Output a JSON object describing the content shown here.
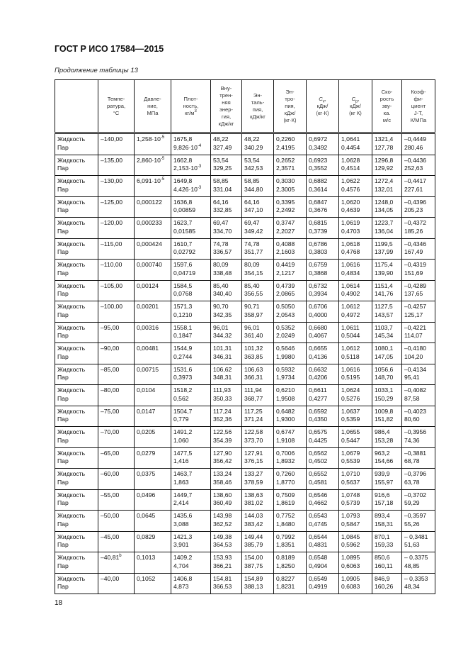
{
  "header": {
    "title": "ГОСТ Р ИСО 17584—2015",
    "subtitle": "Продолжение таблицы 13"
  },
  "columns": {
    "phase": "",
    "temperature": "Темпе-\nратура,\n°С",
    "pressure": "Давле-\nние,\nМПа",
    "density": "Плот-\nность,\nкг/м",
    "density_sup": "3",
    "internal_energy": "Вну-\nтрен-\nняя\nэнер-\nгия,\nкДж/кг",
    "enthalpy": "Эн-\nталь-\nпия,\nкДж/кг",
    "entropy": "Эн-\nтро-\nпия,\nкДж/\n(кг·К)",
    "cv_sym": "C",
    "cv_sub": "v",
    "cv_unit": ",\nкДж/\n(кг·К)",
    "cp_sym": "C",
    "cp_sub": "p",
    "cp_unit": ",\nкДж/\n(кг К)",
    "sound_speed": "Ско-\nрость\nзву-\nка.\nм/с",
    "jt": "Коэф-\nфи-\nциент\nJ-T,\nК/МПа"
  },
  "phase_labels": {
    "liquid": "Жидкость",
    "vapor": "Пар"
  },
  "rows": [
    {
      "t": "–140,00",
      "t_sup": "",
      "p": "1,258·10",
      "p_exp": "-5",
      "rho_l": "1675,8",
      "rho_v": "9,826·10",
      "rho_v_exp": "-4",
      "u_l": "48,22",
      "u_v": "327,49",
      "h_l": "48,22",
      "h_v": "340,29",
      "s_l": "0,2260",
      "s_v": "2,4195",
      "cv_l": "0,6972",
      "cv_v": "0,3492",
      "cp_l": "1,0641",
      "cp_v": "0,4454",
      "w_l": "1321,4",
      "w_v": "127,78",
      "jt_l": "–0,4449",
      "jt_v": "280,46"
    },
    {
      "t": "–135,00",
      "t_sup": "",
      "p": "2,860·10",
      "p_exp": "-5",
      "rho_l": "1662,8",
      "rho_v": "2,153·10",
      "rho_v_exp": "-3",
      "u_l": "53,54",
      "u_v": "329,25",
      "h_l": "53,54",
      "h_v": "342,53",
      "s_l": "0,2652",
      "s_v": "2,3571",
      "cv_l": "0,6923",
      "cv_v": "0,3552",
      "cp_l": "1,0628",
      "cp_v": "0,4514",
      "w_l": "1296,8",
      "w_v": "129,92",
      "jt_l": "–0,4436",
      "jt_v": "252,63"
    },
    {
      "t": "–130,00",
      "t_sup": "",
      "p": "6,091·10",
      "p_exp": "-5",
      "rho_l": "1649,8",
      "rho_v": "4,426·10",
      "rho_v_exp": "-3",
      "u_l": "58,85",
      "u_v": "331,04",
      "h_l": "58,85",
      "h_v": "344,80",
      "s_l": "0,3030",
      "s_v": "2,3005",
      "cv_l": "0,6882",
      "cv_v": "0,3614",
      "cp_l": "1,0622",
      "cp_v": "0,4576",
      "w_l": "1272,4",
      "w_v": "132,01",
      "jt_l": "–0,4417",
      "jt_v": "227,61"
    },
    {
      "t": "–125,00",
      "t_sup": "",
      "p": "0,000122",
      "p_exp": "",
      "rho_l": "1636,8",
      "rho_v": "0,00859",
      "rho_v_exp": "",
      "u_l": "64,16",
      "u_v": "332,85",
      "h_l": "64,16",
      "h_v": "347,10",
      "s_l": "0,3395",
      "s_v": "2,2492",
      "cv_l": "0,6847",
      "cv_v": "0,3676",
      "cp_l": "1,0620",
      "cp_v": "0,4639",
      "w_l": "1248,0",
      "w_v": "134,05",
      "jt_l": "–0,4396",
      "jt_v": "205,23"
    },
    {
      "t": "–120,00",
      "t_sup": "",
      "p": "0,000233",
      "p_exp": "",
      "rho_l": "1623,7",
      "rho_v": "0,01585",
      "rho_v_exp": "",
      "u_l": "69,47",
      "u_v": "334,70",
      "h_l": "69,47",
      "h_v": "349,42",
      "s_l": "0,3747",
      "s_v": "2,2027",
      "cv_l": "0,6815",
      "cv_v": "0,3739",
      "cp_l": "1,0619",
      "cp_v": "0,4703",
      "w_l": "1223,7",
      "w_v": "136,04",
      "jt_l": "–0,4372",
      "jt_v": "185,26"
    },
    {
      "t": "–115,00",
      "t_sup": "",
      "p": "0,000424",
      "p_exp": "",
      "rho_l": "1610,7",
      "rho_v": "0,02792",
      "rho_v_exp": "",
      "u_l": "74,78",
      "u_v": "336,57",
      "h_l": "74,78",
      "h_v": "351,77",
      "s_l": "0,4088",
      "s_v": "2,1603",
      "cv_l": "0,6786",
      "cv_v": "0,3803",
      "cp_l": "1,0618",
      "cp_v": "0,4768",
      "w_l": "1199,5",
      "w_v": "137,99",
      "jt_l": "–0,4346",
      "jt_v": "167,49"
    },
    {
      "t": "–110,00",
      "t_sup": "",
      "p": "0,000740",
      "p_exp": "",
      "rho_l": "1597,6",
      "rho_v": "0,04719",
      "rho_v_exp": "",
      "u_l": "80,09",
      "u_v": "338,48",
      "h_l": "80,09",
      "h_v": "354,15",
      "s_l": "0,4419",
      "s_v": "2,1217",
      "cv_l": "0,6759",
      "cv_v": "0,3868",
      "cp_l": "1,0616",
      "cp_v": "0,4834",
      "w_l": "1175,4",
      "w_v": "139,90",
      "jt_l": "–0,4319",
      "jt_v": "151,69"
    },
    {
      "t": "–105,00",
      "t_sup": "",
      "p": "0,00124",
      "p_exp": "",
      "rho_l": "1584,5",
      "rho_v": "0,0768",
      "rho_v_exp": "",
      "u_l": "85,40",
      "u_v": "340,40",
      "h_l": "85,40",
      "h_v": "356,55",
      "s_l": "0,4739",
      "s_v": "2,0865",
      "cv_l": "0,6732",
      "cv_v": "0,3934",
      "cp_l": "1,0614",
      "cp_v": "0,4902",
      "w_l": "1151,4",
      "w_v": "141,76",
      "jt_l": "–0,4289",
      "jt_v": "137,65"
    },
    {
      "t": "–100,00",
      "t_sup": "",
      "p": "0,00201",
      "p_exp": "",
      "rho_l": "1571,3",
      "rho_v": "0,1210",
      "rho_v_exp": "",
      "u_l": "90,70",
      "u_v": "342,35",
      "h_l": "90,71",
      "h_v": "358,97",
      "s_l": "0,5050",
      "s_v": "2,0543",
      "cv_l": "0,6706",
      "cv_v": "0,4000",
      "cp_l": "1,0612",
      "cp_v": "0,4972",
      "w_l": "1127,5",
      "w_v": "143,57",
      "jt_l": "–0,4257",
      "jt_v": "125,17"
    },
    {
      "t": "–95,00",
      "t_sup": "",
      "p": "0,00316",
      "p_exp": "",
      "rho_l": "1558,1",
      "rho_v": "0,1847",
      "rho_v_exp": "",
      "u_l": "96,01",
      "u_v": "344,32",
      "h_l": "96,01",
      "h_v": "361,40",
      "s_l": "0,5352",
      "s_v": "2,0249",
      "cv_l": "0,6680",
      "cv_v": "0,4067",
      "cp_l": "1,0611",
      "cp_v": "0,5044",
      "w_l": "1103,7",
      "w_v": "145,34",
      "jt_l": "–0,4221",
      "jt_v": "114,07"
    },
    {
      "t": "–90,00",
      "t_sup": "",
      "p": "0,00481",
      "p_exp": "",
      "rho_l": "1544,9",
      "rho_v": "0,2744",
      "rho_v_exp": "",
      "u_l": "101,31",
      "u_v": "346,31",
      "h_l": "101,32",
      "h_v": "363,85",
      "s_l": "0,5646",
      "s_v": "1,9980",
      "cv_l": "0,6655",
      "cv_v": "0,4136",
      "cp_l": "1,0612",
      "cp_v": "0,5118",
      "w_l": "1080,1",
      "w_v": "147,05",
      "jt_l": "–0,4180",
      "jt_v": "104,20"
    },
    {
      "t": "–85,00",
      "t_sup": "",
      "p": "0,00715",
      "p_exp": "",
      "rho_l": "1531,6",
      "rho_v": "0,3973",
      "rho_v_exp": "",
      "u_l": "106,62",
      "u_v": "348,31",
      "h_l": "106,63",
      "h_v": "366,31",
      "s_l": "0,5932",
      "s_v": "1,9734",
      "cv_l": "0,6632",
      "cv_v": "0,4206",
      "cp_l": "1,0616",
      "cp_v": "0,5195",
      "w_l": "1056,6",
      "w_v": "148,70",
      "jt_l": "–0,4134",
      "jt_v": "95,41"
    },
    {
      "t": "–80,00",
      "t_sup": "",
      "p": "0,0104",
      "p_exp": "",
      "rho_l": "1518,2",
      "rho_v": "0,562",
      "rho_v_exp": "",
      "u_l": "111,93",
      "u_v": "350,33",
      "h_l": "111,94",
      "h_v": "368,77",
      "s_l": "0,6210",
      "s_v": "1,9508",
      "cv_l": "0,6611",
      "cv_v": "0,4277",
      "cp_l": "1,0624",
      "cp_v": "0,5276",
      "w_l": "1033,1",
      "w_v": "150,29",
      "jt_l": "–0,4082",
      "jt_v": "87,58"
    },
    {
      "t": "–75,00",
      "t_sup": "",
      "p": "0,0147",
      "p_exp": "",
      "rho_l": "1504,7",
      "rho_v": "0,779",
      "rho_v_exp": "",
      "u_l": "117,24",
      "u_v": "352,36",
      "h_l": "117,25",
      "h_v": "371,24",
      "s_l": "0,6482",
      "s_v": "1,9300",
      "cv_l": "0,6592",
      "cv_v": "0,4350",
      "cp_l": "1,0637",
      "cp_v": "0,5359",
      "w_l": "1009,8",
      "w_v": "151,82",
      "jt_l": "–0,4023",
      "jt_v": "80,60"
    },
    {
      "t": "–70,00",
      "t_sup": "",
      "p": "0,0205",
      "p_exp": "",
      "rho_l": "1491,2",
      "rho_v": "1,060",
      "rho_v_exp": "",
      "u_l": "122,56",
      "u_v": "354,39",
      "h_l": "122,58",
      "h_v": "373,70",
      "s_l": "0,6747",
      "s_v": "1,9108",
      "cv_l": "0,6575",
      "cv_v": "0,4425",
      "cp_l": "1,0655",
      "cp_v": "0,5447",
      "w_l": "986,4",
      "w_v": "153,28",
      "jt_l": "–0,3956",
      "jt_v": "74,36"
    },
    {
      "t": "–65,00",
      "t_sup": "",
      "p": "0,0279",
      "p_exp": "",
      "rho_l": "1477,5",
      "rho_v": "1,416",
      "rho_v_exp": "",
      "u_l": "127,90",
      "u_v": "356,42",
      "h_l": "127,91",
      "h_v": "376,15",
      "s_l": "0,7006",
      "s_v": "1,8932",
      "cv_l": "0,6562",
      "cv_v": "0,4502",
      "cp_l": "1,0679",
      "cp_v": "0,5539",
      "w_l": "963,2",
      "w_v": "154,66",
      "jt_l": "–0,3881",
      "jt_v": "68,78"
    },
    {
      "t": "–60,00",
      "t_sup": "",
      "p": "0,0375",
      "p_exp": "",
      "rho_l": "1463,7",
      "rho_v": "1,863",
      "rho_v_exp": "",
      "u_l": "133,24",
      "u_v": "358,46",
      "h_l": "133,27",
      "h_v": "378,59",
      "s_l": "0,7260",
      "s_v": "1,8770",
      "cv_l": "0,6552",
      "cv_v": "0,4581",
      "cp_l": "1,0710",
      "cp_v": "0,5637",
      "w_l": "939,9",
      "w_v": "155,97",
      "jt_l": "–0,3796",
      "jt_v": "63,78"
    },
    {
      "t": "–55,00",
      "t_sup": "",
      "p": "0,0496",
      "p_exp": "",
      "rho_l": "1449,7",
      "rho_v": "2,414",
      "rho_v_exp": "",
      "u_l": "138,60",
      "u_v": "360,49",
      "h_l": "138,63",
      "h_v": "381,02",
      "s_l": "0,7509",
      "s_v": "1,8619",
      "cv_l": "0,6546",
      "cv_v": "0,4662",
      "cp_l": "1,0748",
      "cp_v": "0,5739",
      "w_l": "916,6",
      "w_v": "157,18",
      "jt_l": "–0,3702",
      "jt_v": "59,29"
    },
    {
      "t": "–50,00",
      "t_sup": "",
      "p": "0,0645",
      "p_exp": "",
      "rho_l": "1435,6",
      "rho_v": "3,088",
      "rho_v_exp": "",
      "u_l": "143,98",
      "u_v": "362,52",
      "h_l": "144,03",
      "h_v": "383,42",
      "s_l": "0,7752",
      "s_v": "1,8480",
      "cv_l": "0,6543",
      "cv_v": "0,4745",
      "cp_l": "1,0793",
      "cp_v": "0,5847",
      "w_l": "893,4",
      "w_v": "158,31",
      "jt_l": "–0,3597",
      "jt_v": "55,26"
    },
    {
      "t": "–45,00",
      "t_sup": "",
      "p": "0,0829",
      "p_exp": "",
      "rho_l": "1421,3",
      "rho_v": "3,901",
      "rho_v_exp": "",
      "u_l": "149,38",
      "u_v": "364,53",
      "h_l": "149,44",
      "h_v": "385,79",
      "s_l": "0,7992",
      "s_v": "1,8351",
      "cv_l": "0,6544",
      "cv_v": "0,4831",
      "cp_l": "1,0845",
      "cp_v": "0,5962",
      "w_l": "870,1",
      "w_v": "159,33",
      "jt_l": "– 0,3481",
      "jt_v": "51,63"
    },
    {
      "t": "–40,81",
      "t_sup": "b",
      "p": "0,1013",
      "p_exp": "",
      "rho_l": "1409,2",
      "rho_v": "4,704",
      "rho_v_exp": "",
      "u_l": "153,93",
      "u_v": "366,21",
      "h_l": "154,00",
      "h_v": "387,75",
      "s_l": "0,8189",
      "s_v": "1,8250",
      "cv_l": "0,6548",
      "cv_v": "0,4904",
      "cp_l": "1,0895",
      "cp_v": "0,6063",
      "w_l": "850,6",
      "w_v": "160,11",
      "jt_l": "– 0,3375",
      "jt_v": "48,85"
    },
    {
      "t": "–40,00",
      "t_sup": "",
      "p": "0,1052",
      "p_exp": "",
      "rho_l": "1406,8",
      "rho_v": "4,873",
      "rho_v_exp": "",
      "u_l": "154,81",
      "u_v": "366,53",
      "h_l": "154,89",
      "h_v": "388,13",
      "s_l": "0,8227",
      "s_v": "1,8231",
      "cv_l": "0,6549",
      "cv_v": "0,4919",
      "cp_l": "1,0905",
      "cp_v": "0,6083",
      "w_l": "846,9",
      "w_v": "160,26",
      "jt_l": "– 0,3353",
      "jt_v": "48,34"
    }
  ],
  "footer": {
    "page_number": "18"
  }
}
